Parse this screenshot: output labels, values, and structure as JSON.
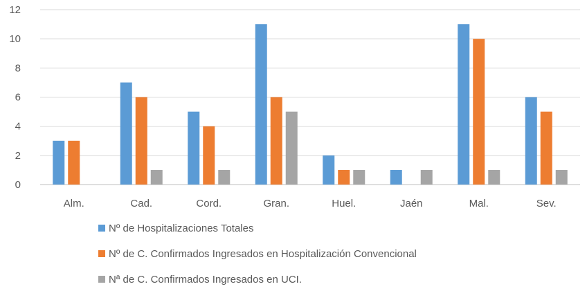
{
  "chart_data": {
    "type": "bar",
    "title": "",
    "xlabel": "",
    "ylabel": "",
    "categories": [
      "Alm.",
      "Cad.",
      "Cord.",
      "Gran.",
      "Huel.",
      "Jaén",
      "Mal.",
      "Sev."
    ],
    "ylim": [
      0,
      12
    ],
    "yticks": [
      0,
      2,
      4,
      6,
      8,
      10,
      12
    ],
    "grid": true,
    "legend_position": "bottom",
    "series": [
      {
        "name": "Nº de Hospitalizaciones Totales",
        "color": "#5b9bd5",
        "values": [
          3,
          7,
          5,
          11,
          2,
          1,
          11,
          6
        ]
      },
      {
        "name": "Nº de C. Confirmados Ingresados en Hospitalización Convencional",
        "color": "#ed7d31",
        "values": [
          3,
          6,
          4,
          6,
          1,
          0,
          10,
          5
        ]
      },
      {
        "name": "Nª de C. Confirmados Ingresados en UCI.",
        "color": "#a5a5a5",
        "values": [
          0,
          1,
          1,
          5,
          1,
          1,
          1,
          1
        ]
      }
    ]
  }
}
